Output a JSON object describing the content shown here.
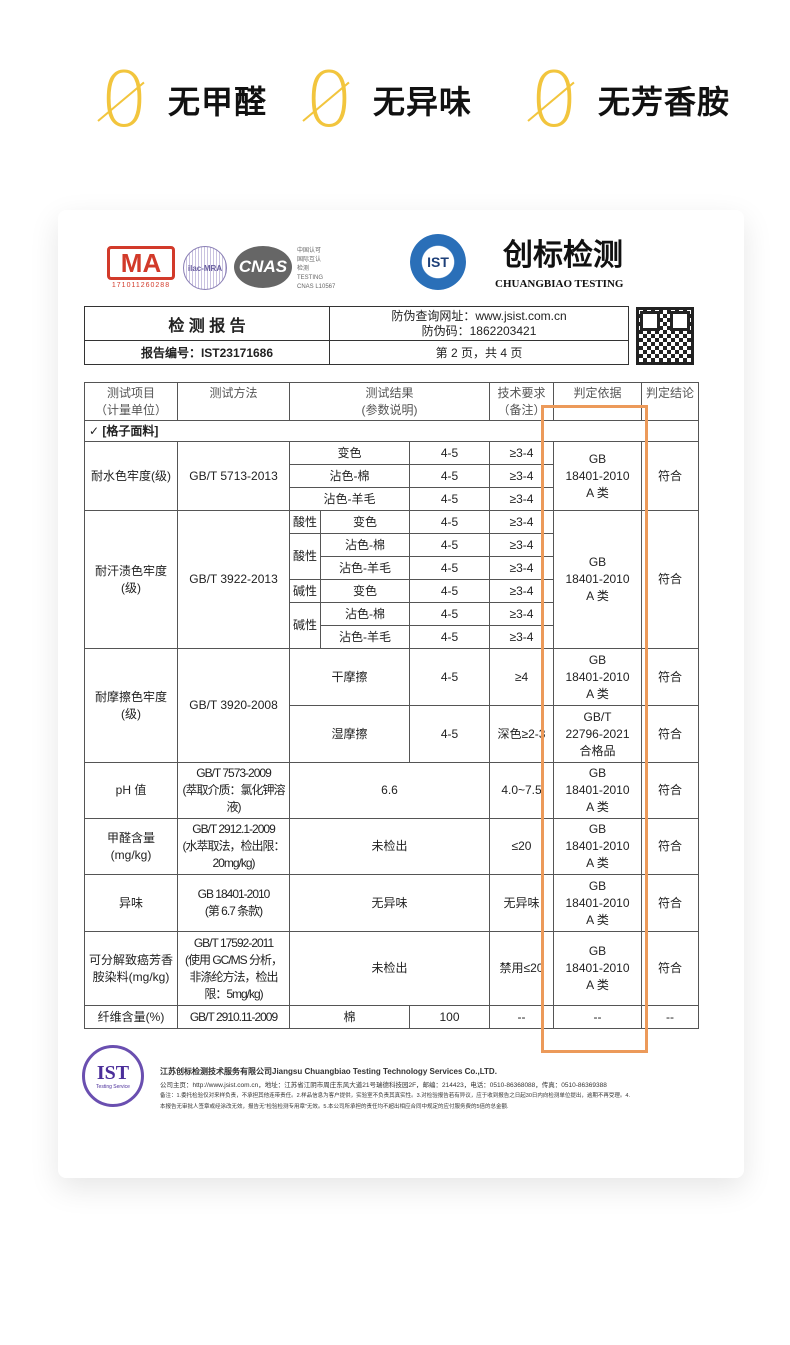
{
  "badges": [
    {
      "symbol": "0",
      "label": "无甲醛"
    },
    {
      "symbol": "0",
      "label": "无异味"
    },
    {
      "symbol": "0",
      "label": "无芳香胺"
    }
  ],
  "logos": {
    "cma": "MA",
    "cma_number": "171011260288",
    "ilac": "ilac-MRA",
    "cnas": "CNAS",
    "cnas_text": [
      "中国认可",
      "国际互认",
      "检测",
      "TESTING",
      "CNAS L10567"
    ],
    "ist": "IST",
    "brand_cn": "创标检测",
    "brand_en": "CHUANGBIAO TESTING"
  },
  "report": {
    "title": "检 测 报 告",
    "url_line": "防伪查询网址：www.jsist.com.cn",
    "code_line": "防伪码：1862203421",
    "report_no": "报告编号：IST23171686",
    "page": "第 2 页，共 4 页"
  },
  "table": {
    "headers": [
      [
        "测试项目",
        "（计量单位）"
      ],
      [
        "测试方法",
        ""
      ],
      [
        "测试结果",
        "(参数说明)"
      ],
      [
        "技术要求",
        "（备注）"
      ],
      [
        "判定依据",
        ""
      ],
      [
        "判定结论",
        ""
      ]
    ],
    "section": "✓   [格子面料]",
    "water": {
      "item": "耐水色牢度(级)",
      "method": "GB/T 5713-2013",
      "rows": [
        [
          "变色",
          "4-5",
          "≥3-4"
        ],
        [
          "沾色-棉",
          "4-5",
          "≥3-4"
        ],
        [
          "沾色-羊毛",
          "4-5",
          "≥3-4"
        ]
      ],
      "basis": [
        "GB",
        "18401-2010",
        "A 类"
      ],
      "result": "符合"
    },
    "sweat": {
      "item": [
        "耐汗渍色牢度",
        "(级)"
      ],
      "method": "GB/T 3922-2013",
      "acid": "酸性",
      "alkali": "碱性",
      "rows": [
        [
          "变色",
          "4-5",
          "≥3-4"
        ],
        [
          "沾色-棉",
          "4-5",
          "≥3-4"
        ],
        [
          "沾色-羊毛",
          "4-5",
          "≥3-4"
        ],
        [
          "变色",
          "4-5",
          "≥3-4"
        ],
        [
          "沾色-棉",
          "4-5",
          "≥3-4"
        ],
        [
          "沾色-羊毛",
          "4-5",
          "≥3-4"
        ]
      ],
      "basis": [
        "GB",
        "18401-2010",
        "A 类"
      ],
      "result": "符合"
    },
    "rub": {
      "item": [
        "耐摩擦色牢度",
        "(级)"
      ],
      "method": "GB/T 3920-2008",
      "rows": [
        {
          "name": "干摩擦",
          "value": "4-5",
          "req": "≥4",
          "basis": [
            "GB",
            "18401-2010",
            "A 类"
          ],
          "result": "符合"
        },
        {
          "name": "湿摩擦",
          "value": "4-5",
          "req": "深色≥2-3",
          "basis": [
            "GB/T",
            "22796-2021",
            "合格品"
          ],
          "result": "符合"
        }
      ]
    },
    "ph": {
      "item": "pH 值",
      "method": [
        "GB/T 7573-2009",
        "(萃取介质：氯化钾溶",
        "液)"
      ],
      "value": "6.6",
      "req": "4.0~7.5",
      "basis": [
        "GB",
        "18401-2010",
        "A 类"
      ],
      "result": "符合"
    },
    "hcho": {
      "item": [
        "甲醛含量",
        "(mg/kg)"
      ],
      "method": [
        "GB/T 2912.1-2009",
        "(水萃取法，检出限：",
        "20mg/kg)"
      ],
      "value": "未检出",
      "req": "≤20",
      "basis": [
        "GB",
        "18401-2010",
        "A 类"
      ],
      "result": "符合"
    },
    "odor": {
      "item": "异味",
      "method": [
        "GB 18401-2010",
        "(第 6.7 条款)"
      ],
      "value": "无异味",
      "req": "无异味",
      "basis": [
        "GB",
        "18401-2010",
        "A 类"
      ],
      "result": "符合"
    },
    "amine": {
      "item": [
        "可分解致癌芳香",
        "胺染料(mg/kg)"
      ],
      "method": [
        "GB/T 17592-2011",
        "(使用 GC/MS 分析，",
        "非涤纶方法，检出",
        "限：5mg/kg)"
      ],
      "value": "未检出",
      "req": "禁用≤20",
      "basis": [
        "GB",
        "18401-2010",
        "A 类"
      ],
      "result": "符合"
    },
    "fiber": {
      "item": "纤维含量(%)",
      "method": "GB/T 2910.11-2009",
      "name": "棉",
      "value": "100",
      "req": "--",
      "basis": "--",
      "result": "--"
    }
  },
  "highlight_color": "#ec9a5a",
  "footer": {
    "seal": "IST",
    "seal_sub": "Testing Service",
    "company": "江苏创标检测技术服务有限公司Jiangsu Chuangbiao Testing Technology Services Co.,LTD.",
    "address": "公司主页：http://www.jsist.com.cn，地址：江苏省江阴市周庄东风大道21号瑞德科技园2F，邮编：214423，电话：0510-86368088，传真：0510-86369388",
    "note1": "备注：1.委托检验仅对来样负责，不承担其他连带责任。2.样品信息为客户提供，实验室不负责其真实性。3.对检验报告若有异议，应于收到报告之日起30日内向检测单位提出，逾期不再受理。4.",
    "note2": "本报告无审批人签章或经涂改无效，报告无\"检验检测专用章\"无效。5.本公司所承担的责任均不超出相应合同中规定的应付服务费的5倍的总金额."
  }
}
